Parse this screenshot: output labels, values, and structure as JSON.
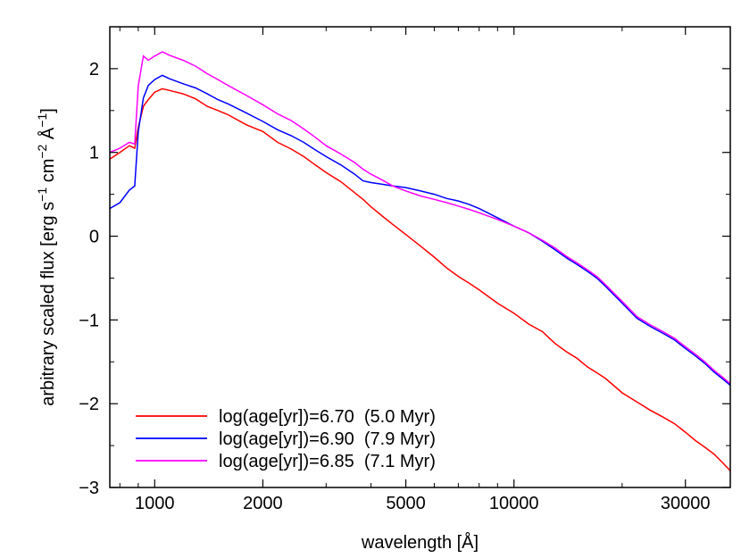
{
  "chart_data": {
    "type": "line",
    "xlabel": "wavelength [Å]",
    "ylabel": "arbitrary scaled flux [erg s",
    "ylabel_parts": {
      "s_exp": "−1",
      "cm_text": " cm",
      "cm_exp": "−2",
      "a_text": " Å",
      "a_exp": "−1",
      "close": "]"
    },
    "x_scale": "log",
    "xlim": [
      750,
      40000
    ],
    "ylim": [
      -3,
      2.5
    ],
    "x_ticks": [
      {
        "value": 1000,
        "label": "1000"
      },
      {
        "value": 2000,
        "label": "2000"
      },
      {
        "value": 5000,
        "label": "5000"
      },
      {
        "value": 10000,
        "label": "10000"
      },
      {
        "value": 30000,
        "label": "30000"
      }
    ],
    "y_ticks": [
      {
        "value": 2,
        "label": "2"
      },
      {
        "value": 1,
        "label": "1"
      },
      {
        "value": 0,
        "label": "0"
      },
      {
        "value": -1,
        "label": "−1"
      },
      {
        "value": -2,
        "label": "−2"
      },
      {
        "value": -3,
        "label": "−3"
      }
    ],
    "grid": false,
    "legend_position": "bottom-left",
    "series": [
      {
        "name": "log(age[yr])=6.70  (5.0 Myr)",
        "color": "#ff0000",
        "x": [
          750,
          800,
          850,
          880,
          900,
          930,
          960,
          1000,
          1050,
          1100,
          1200,
          1300,
          1400,
          1500,
          1600,
          1800,
          2000,
          2200,
          2400,
          2600,
          2800,
          3000,
          3300,
          3600,
          3800,
          4000,
          4300,
          4600,
          5000,
          5500,
          6000,
          6500,
          7000,
          7500,
          8000,
          9000,
          10000,
          11000,
          12000,
          13000,
          14000,
          15000,
          16000,
          17000,
          18000,
          20000,
          22000,
          24000,
          26000,
          28000,
          30000,
          32000,
          34000,
          36000,
          38000,
          40000
        ],
        "y": [
          0.92,
          1.0,
          1.08,
          1.05,
          1.3,
          1.55,
          1.63,
          1.72,
          1.76,
          1.74,
          1.7,
          1.64,
          1.55,
          1.5,
          1.45,
          1.33,
          1.25,
          1.12,
          1.04,
          0.95,
          0.85,
          0.76,
          0.65,
          0.52,
          0.44,
          0.35,
          0.24,
          0.14,
          0.02,
          -0.12,
          -0.25,
          -0.38,
          -0.48,
          -0.56,
          -0.64,
          -0.8,
          -0.92,
          -1.05,
          -1.14,
          -1.28,
          -1.38,
          -1.46,
          -1.56,
          -1.63,
          -1.7,
          -1.87,
          -1.98,
          -2.08,
          -2.16,
          -2.24,
          -2.34,
          -2.44,
          -2.52,
          -2.6,
          -2.7,
          -2.8
        ]
      },
      {
        "name": "log(age[yr])=6.90  (7.9 Myr)",
        "color": "#0000ff",
        "x": [
          750,
          800,
          850,
          880,
          900,
          930,
          960,
          1000,
          1050,
          1100,
          1200,
          1300,
          1400,
          1500,
          1600,
          1800,
          2000,
          2200,
          2400,
          2600,
          2800,
          3000,
          3300,
          3600,
          3800,
          4000,
          4300,
          4600,
          5000,
          5500,
          6000,
          6500,
          7000,
          7500,
          8000,
          9000,
          10000,
          11000,
          12000,
          13000,
          14000,
          15000,
          16000,
          17000,
          18000,
          20000,
          22000,
          24000,
          26000,
          28000,
          30000,
          32000,
          34000,
          36000,
          38000,
          40000
        ],
        "y": [
          0.33,
          0.4,
          0.55,
          0.6,
          1.25,
          1.65,
          1.8,
          1.87,
          1.92,
          1.88,
          1.82,
          1.77,
          1.7,
          1.63,
          1.58,
          1.47,
          1.37,
          1.27,
          1.2,
          1.12,
          1.03,
          0.95,
          0.85,
          0.74,
          0.66,
          0.64,
          0.62,
          0.6,
          0.58,
          0.54,
          0.5,
          0.45,
          0.42,
          0.38,
          0.33,
          0.22,
          0.12,
          0.04,
          -0.06,
          -0.16,
          -0.26,
          -0.34,
          -0.42,
          -0.5,
          -0.6,
          -0.8,
          -0.98,
          -1.08,
          -1.16,
          -1.24,
          -1.34,
          -1.43,
          -1.52,
          -1.62,
          -1.7,
          -1.78
        ]
      },
      {
        "name": "log(age[yr])=6.85  (7.1 Myr)",
        "color": "#ff00ff",
        "x": [
          750,
          800,
          850,
          880,
          900,
          930,
          960,
          1000,
          1050,
          1100,
          1200,
          1300,
          1400,
          1500,
          1600,
          1800,
          2000,
          2200,
          2400,
          2600,
          2800,
          3000,
          3300,
          3600,
          3800,
          4000,
          4300,
          4600,
          5000,
          5500,
          6000,
          6500,
          7000,
          7500,
          8000,
          9000,
          10000,
          11000,
          12000,
          13000,
          14000,
          15000,
          16000,
          17000,
          18000,
          20000,
          22000,
          24000,
          26000,
          28000,
          30000,
          32000,
          34000,
          36000,
          38000,
          40000
        ],
        "y": [
          1.0,
          1.05,
          1.12,
          1.1,
          1.8,
          2.15,
          2.1,
          2.15,
          2.2,
          2.16,
          2.1,
          2.03,
          1.94,
          1.87,
          1.8,
          1.68,
          1.57,
          1.46,
          1.38,
          1.28,
          1.18,
          1.08,
          0.98,
          0.88,
          0.8,
          0.74,
          0.67,
          0.6,
          0.54,
          0.48,
          0.44,
          0.4,
          0.36,
          0.32,
          0.28,
          0.2,
          0.12,
          0.04,
          -0.05,
          -0.14,
          -0.24,
          -0.32,
          -0.4,
          -0.48,
          -0.58,
          -0.78,
          -0.96,
          -1.06,
          -1.14,
          -1.22,
          -1.32,
          -1.41,
          -1.5,
          -1.6,
          -1.68,
          -1.76
        ]
      }
    ]
  }
}
